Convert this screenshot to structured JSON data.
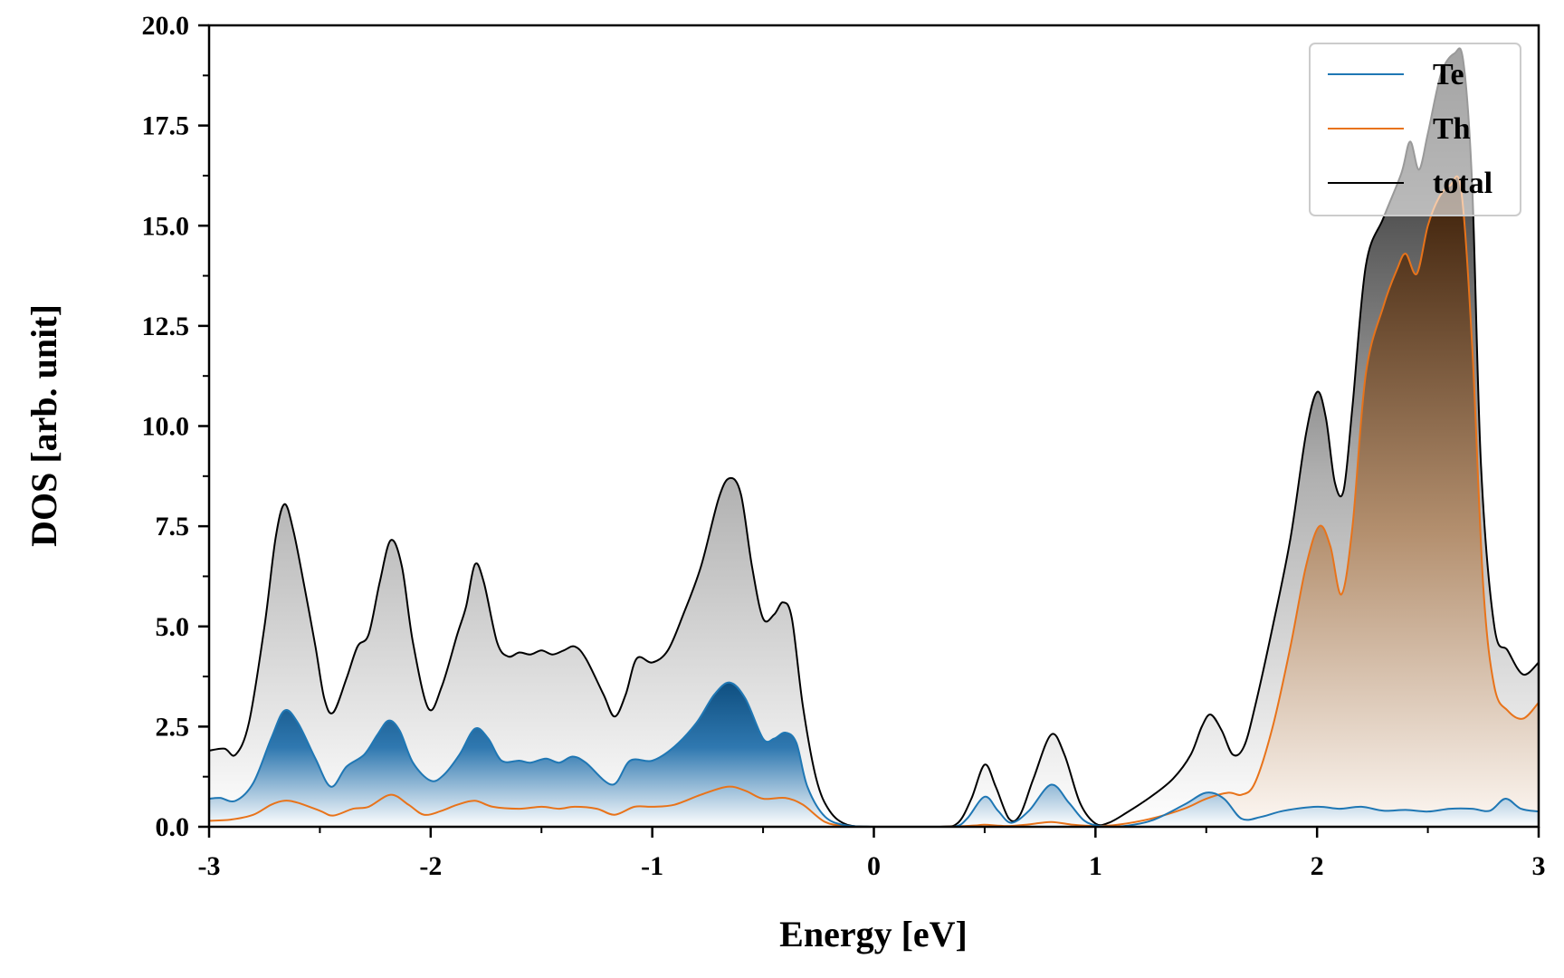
{
  "chart_data": {
    "type": "area",
    "title": "",
    "xlabel": "Energy [eV]",
    "ylabel": "DOS [arb. unit]",
    "xlim": [
      -3,
      3
    ],
    "ylim": [
      0,
      20
    ],
    "x_ticks": [
      -3,
      -2,
      -1,
      0,
      1,
      2,
      3
    ],
    "x_tick_labels": [
      "-3",
      "-2",
      "-1",
      "0",
      "1",
      "2",
      "3"
    ],
    "y_ticks": [
      0,
      2.5,
      5,
      7.5,
      10,
      12.5,
      15,
      17.5,
      20
    ],
    "y_tick_labels": [
      "0.0",
      "2.5",
      "5.0",
      "7.5",
      "10.0",
      "12.5",
      "15.0",
      "17.5",
      "20.0"
    ],
    "grid": false,
    "legend_position": "top-right",
    "series": [
      {
        "name": "Te",
        "color": "#1f77b4",
        "fill": "blue-gradient",
        "points": [
          [
            -3.0,
            0.7
          ],
          [
            -2.95,
            0.72
          ],
          [
            -2.88,
            0.65
          ],
          [
            -2.8,
            1.1
          ],
          [
            -2.72,
            2.2
          ],
          [
            -2.66,
            2.9
          ],
          [
            -2.6,
            2.6
          ],
          [
            -2.52,
            1.7
          ],
          [
            -2.45,
            1.0
          ],
          [
            -2.38,
            1.5
          ],
          [
            -2.3,
            1.8
          ],
          [
            -2.24,
            2.3
          ],
          [
            -2.19,
            2.65
          ],
          [
            -2.14,
            2.4
          ],
          [
            -2.08,
            1.6
          ],
          [
            -2.0,
            1.15
          ],
          [
            -1.94,
            1.3
          ],
          [
            -1.87,
            1.8
          ],
          [
            -1.8,
            2.45
          ],
          [
            -1.74,
            2.2
          ],
          [
            -1.68,
            1.65
          ],
          [
            -1.6,
            1.65
          ],
          [
            -1.55,
            1.6
          ],
          [
            -1.48,
            1.7
          ],
          [
            -1.42,
            1.6
          ],
          [
            -1.36,
            1.75
          ],
          [
            -1.3,
            1.6
          ],
          [
            -1.18,
            1.05
          ],
          [
            -1.1,
            1.65
          ],
          [
            -1.0,
            1.65
          ],
          [
            -0.9,
            2.0
          ],
          [
            -0.8,
            2.6
          ],
          [
            -0.72,
            3.3
          ],
          [
            -0.65,
            3.6
          ],
          [
            -0.58,
            3.2
          ],
          [
            -0.5,
            2.2
          ],
          [
            -0.45,
            2.2
          ],
          [
            -0.4,
            2.35
          ],
          [
            -0.35,
            2.1
          ],
          [
            -0.3,
            1.0
          ],
          [
            -0.22,
            0.25
          ],
          [
            -0.12,
            0.03
          ],
          [
            0.0,
            0.0
          ],
          [
            0.2,
            0.0
          ],
          [
            0.36,
            0.0
          ],
          [
            0.42,
            0.2
          ],
          [
            0.5,
            0.75
          ],
          [
            0.56,
            0.4
          ],
          [
            0.62,
            0.1
          ],
          [
            0.7,
            0.4
          ],
          [
            0.8,
            1.05
          ],
          [
            0.88,
            0.6
          ],
          [
            0.95,
            0.15
          ],
          [
            1.02,
            0.02
          ],
          [
            1.1,
            0.0
          ],
          [
            1.25,
            0.15
          ],
          [
            1.4,
            0.55
          ],
          [
            1.5,
            0.85
          ],
          [
            1.58,
            0.7
          ],
          [
            1.66,
            0.2
          ],
          [
            1.75,
            0.25
          ],
          [
            1.85,
            0.4
          ],
          [
            2.0,
            0.5
          ],
          [
            2.1,
            0.45
          ],
          [
            2.2,
            0.5
          ],
          [
            2.3,
            0.4
          ],
          [
            2.4,
            0.42
          ],
          [
            2.5,
            0.38
          ],
          [
            2.6,
            0.45
          ],
          [
            2.7,
            0.45
          ],
          [
            2.78,
            0.4
          ],
          [
            2.85,
            0.7
          ],
          [
            2.92,
            0.45
          ],
          [
            3.0,
            0.38
          ]
        ]
      },
      {
        "name": "Th",
        "color": "#e8731a",
        "fill": "brown-gradient",
        "points": [
          [
            -3.0,
            0.15
          ],
          [
            -2.9,
            0.18
          ],
          [
            -2.8,
            0.3
          ],
          [
            -2.72,
            0.55
          ],
          [
            -2.66,
            0.65
          ],
          [
            -2.6,
            0.6
          ],
          [
            -2.5,
            0.4
          ],
          [
            -2.44,
            0.28
          ],
          [
            -2.35,
            0.45
          ],
          [
            -2.28,
            0.5
          ],
          [
            -2.18,
            0.8
          ],
          [
            -2.1,
            0.55
          ],
          [
            -2.03,
            0.3
          ],
          [
            -1.95,
            0.4
          ],
          [
            -1.88,
            0.55
          ],
          [
            -1.8,
            0.65
          ],
          [
            -1.72,
            0.5
          ],
          [
            -1.6,
            0.45
          ],
          [
            -1.5,
            0.5
          ],
          [
            -1.42,
            0.45
          ],
          [
            -1.35,
            0.5
          ],
          [
            -1.25,
            0.45
          ],
          [
            -1.17,
            0.3
          ],
          [
            -1.08,
            0.5
          ],
          [
            -1.0,
            0.5
          ],
          [
            -0.9,
            0.55
          ],
          [
            -0.78,
            0.8
          ],
          [
            -0.66,
            1.0
          ],
          [
            -0.58,
            0.9
          ],
          [
            -0.5,
            0.7
          ],
          [
            -0.4,
            0.72
          ],
          [
            -0.32,
            0.55
          ],
          [
            -0.22,
            0.12
          ],
          [
            -0.12,
            0.02
          ],
          [
            0.0,
            0.0
          ],
          [
            0.3,
            0.0
          ],
          [
            0.45,
            0.03
          ],
          [
            0.5,
            0.05
          ],
          [
            0.6,
            0.02
          ],
          [
            0.7,
            0.06
          ],
          [
            0.8,
            0.12
          ],
          [
            0.9,
            0.05
          ],
          [
            1.0,
            0.02
          ],
          [
            1.1,
            0.05
          ],
          [
            1.25,
            0.2
          ],
          [
            1.4,
            0.45
          ],
          [
            1.5,
            0.7
          ],
          [
            1.6,
            0.85
          ],
          [
            1.66,
            0.8
          ],
          [
            1.72,
            1.1
          ],
          [
            1.8,
            2.5
          ],
          [
            1.88,
            4.5
          ],
          [
            1.95,
            6.5
          ],
          [
            2.01,
            7.5
          ],
          [
            2.06,
            7.0
          ],
          [
            2.11,
            5.8
          ],
          [
            2.16,
            7.5
          ],
          [
            2.22,
            11.3
          ],
          [
            2.3,
            13.0
          ],
          [
            2.36,
            13.9
          ],
          [
            2.4,
            14.3
          ],
          [
            2.45,
            13.8
          ],
          [
            2.5,
            15.0
          ],
          [
            2.55,
            15.7
          ],
          [
            2.6,
            16.0
          ],
          [
            2.65,
            15.9
          ],
          [
            2.7,
            12.0
          ],
          [
            2.75,
            6.0
          ],
          [
            2.8,
            3.5
          ],
          [
            2.86,
            2.9
          ],
          [
            2.93,
            2.7
          ],
          [
            3.0,
            3.1
          ]
        ]
      },
      {
        "name": "total",
        "color": "#000000",
        "fill": "gray-gradient",
        "points": [
          [
            -3.0,
            1.9
          ],
          [
            -2.93,
            1.95
          ],
          [
            -2.88,
            1.8
          ],
          [
            -2.82,
            2.6
          ],
          [
            -2.75,
            5.0
          ],
          [
            -2.7,
            7.2
          ],
          [
            -2.66,
            8.05
          ],
          [
            -2.62,
            7.4
          ],
          [
            -2.57,
            6.0
          ],
          [
            -2.52,
            4.5
          ],
          [
            -2.48,
            3.2
          ],
          [
            -2.44,
            2.85
          ],
          [
            -2.38,
            3.7
          ],
          [
            -2.33,
            4.5
          ],
          [
            -2.28,
            4.8
          ],
          [
            -2.23,
            6.1
          ],
          [
            -2.18,
            7.15
          ],
          [
            -2.13,
            6.5
          ],
          [
            -2.08,
            4.6
          ],
          [
            -2.01,
            2.95
          ],
          [
            -1.95,
            3.5
          ],
          [
            -1.88,
            4.8
          ],
          [
            -1.84,
            5.5
          ],
          [
            -1.8,
            6.55
          ],
          [
            -1.76,
            6.1
          ],
          [
            -1.7,
            4.6
          ],
          [
            -1.65,
            4.25
          ],
          [
            -1.6,
            4.35
          ],
          [
            -1.55,
            4.3
          ],
          [
            -1.5,
            4.4
          ],
          [
            -1.45,
            4.3
          ],
          [
            -1.4,
            4.4
          ],
          [
            -1.35,
            4.5
          ],
          [
            -1.3,
            4.2
          ],
          [
            -1.22,
            3.3
          ],
          [
            -1.17,
            2.75
          ],
          [
            -1.12,
            3.3
          ],
          [
            -1.07,
            4.2
          ],
          [
            -1.0,
            4.1
          ],
          [
            -0.93,
            4.4
          ],
          [
            -0.86,
            5.3
          ],
          [
            -0.78,
            6.5
          ],
          [
            -0.7,
            8.2
          ],
          [
            -0.65,
            8.7
          ],
          [
            -0.6,
            8.3
          ],
          [
            -0.55,
            6.5
          ],
          [
            -0.5,
            5.2
          ],
          [
            -0.45,
            5.3
          ],
          [
            -0.41,
            5.6
          ],
          [
            -0.37,
            5.2
          ],
          [
            -0.32,
            3.0
          ],
          [
            -0.26,
            1.2
          ],
          [
            -0.2,
            0.4
          ],
          [
            -0.12,
            0.05
          ],
          [
            0.0,
            0.0
          ],
          [
            0.3,
            0.0
          ],
          [
            0.38,
            0.1
          ],
          [
            0.44,
            0.7
          ],
          [
            0.5,
            1.55
          ],
          [
            0.55,
            1.0
          ],
          [
            0.61,
            0.2
          ],
          [
            0.66,
            0.3
          ],
          [
            0.72,
            1.2
          ],
          [
            0.8,
            2.3
          ],
          [
            0.86,
            1.8
          ],
          [
            0.93,
            0.6
          ],
          [
            1.0,
            0.08
          ],
          [
            1.06,
            0.1
          ],
          [
            1.14,
            0.35
          ],
          [
            1.25,
            0.75
          ],
          [
            1.35,
            1.2
          ],
          [
            1.43,
            1.8
          ],
          [
            1.48,
            2.5
          ],
          [
            1.52,
            2.8
          ],
          [
            1.57,
            2.4
          ],
          [
            1.62,
            1.8
          ],
          [
            1.67,
            2.0
          ],
          [
            1.72,
            3.0
          ],
          [
            1.8,
            5.0
          ],
          [
            1.88,
            7.2
          ],
          [
            1.95,
            9.8
          ],
          [
            2.0,
            10.85
          ],
          [
            2.04,
            10.2
          ],
          [
            2.08,
            8.6
          ],
          [
            2.12,
            8.4
          ],
          [
            2.16,
            10.5
          ],
          [
            2.22,
            14.0
          ],
          [
            2.3,
            15.2
          ],
          [
            2.38,
            16.3
          ],
          [
            2.42,
            17.1
          ],
          [
            2.46,
            16.4
          ],
          [
            2.5,
            17.3
          ],
          [
            2.56,
            18.8
          ],
          [
            2.62,
            19.3
          ],
          [
            2.66,
            19.1
          ],
          [
            2.7,
            16.0
          ],
          [
            2.74,
            9.0
          ],
          [
            2.8,
            5.0
          ],
          [
            2.86,
            4.4
          ],
          [
            2.93,
            3.8
          ],
          [
            3.0,
            4.1
          ]
        ]
      }
    ],
    "legend": [
      "Te",
      "Th",
      "total"
    ]
  }
}
